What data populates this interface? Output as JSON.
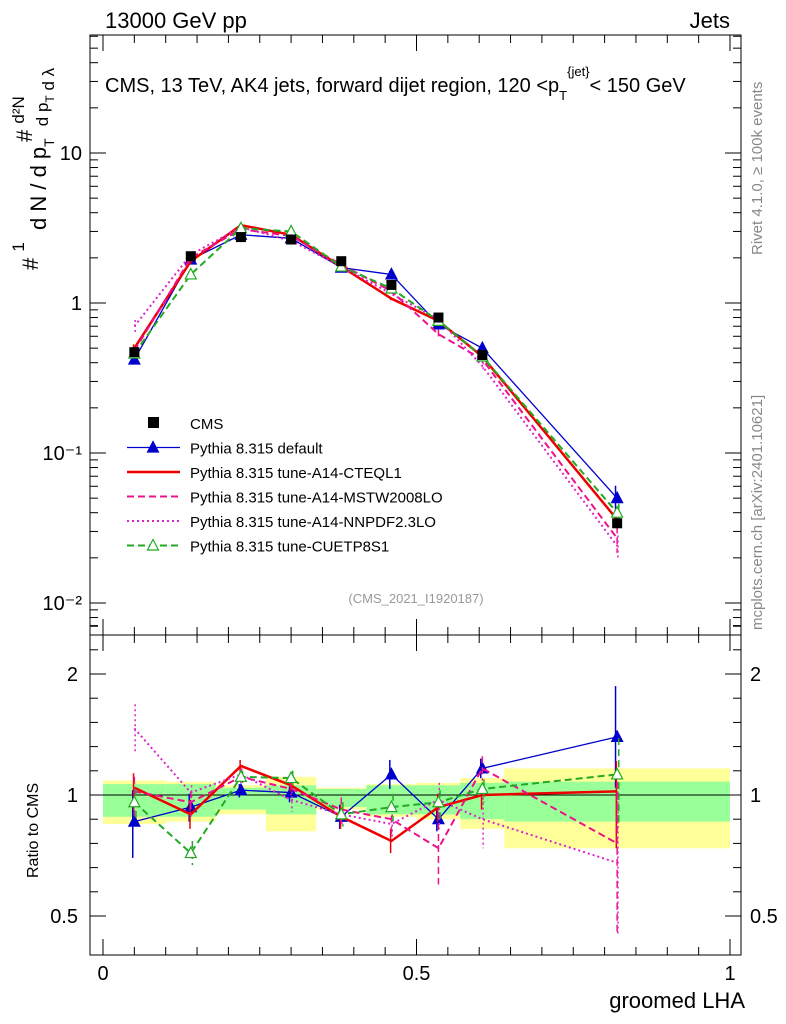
{
  "header": {
    "left": "13000 GeV pp",
    "right": "Jets",
    "side_rivet": "Rivet 4.1.0, ≥ 100k events",
    "side_mcplots": "mcplots.cern.ch [arXiv:2401.10621]"
  },
  "chart_data": {
    "type": "line",
    "title": "CMS, 13 TeV, AK4 jets, forward dijet region, 120 <p_T^{jet}< 150 GeV",
    "analysis_label": "(CMS_2021_I1920187)",
    "xlabel": "groomed LHA",
    "ylabel_main": "1/(dN/dp_T) d²N/(dp_T dλ)",
    "ylabel_ratio": "Ratio to CMS",
    "x_range": [
      0,
      1
    ],
    "y_range_main": [
      0.005,
      40
    ],
    "y_scale_main": "log",
    "y_range_ratio": [
      0.4,
      2.5
    ],
    "x_ticks": [
      "0",
      "0.5",
      "1"
    ],
    "y_ticks_main": [
      "10⁻²",
      "10⁻¹",
      "1",
      "10"
    ],
    "y_ticks_ratio": [
      "0.5",
      "1",
      "2"
    ],
    "x": [
      0.05,
      0.14,
      0.22,
      0.3,
      0.38,
      0.46,
      0.535,
      0.605,
      0.82
    ],
    "bin_edges": [
      0,
      0.1,
      0.18,
      0.26,
      0.34,
      0.42,
      0.5,
      0.57,
      0.64,
      1.0
    ],
    "data": {
      "name": "CMS",
      "values": [
        0.47,
        2.05,
        2.75,
        2.65,
        1.9,
        1.32,
        0.8,
        0.45,
        0.034
      ],
      "band_inner": [
        0.09,
        0.09,
        0.06,
        0.08,
        0.05,
        0.08,
        0.08,
        0.1,
        0.11
      ],
      "band_outer": [
        0.12,
        0.11,
        0.08,
        0.15,
        0.06,
        0.09,
        0.1,
        0.14,
        0.22
      ]
    },
    "series": [
      {
        "name": "Pythia 8.315 default",
        "color": "#0000cc",
        "style": "solid",
        "marker": "triangle-filled",
        "values": [
          0.42,
          1.95,
          2.85,
          2.7,
          1.72,
          1.55,
          0.72,
          0.5,
          0.05
        ],
        "ratio": [
          0.89,
          0.95,
          1.04,
          1.02,
          0.91,
          1.17,
          0.9,
          1.22,
          1.48
        ],
        "ratio_err": [
          0.15,
          0.06,
          0.05,
          0.05,
          0.05,
          0.12,
          0.05,
          0.08,
          0.42
        ]
      },
      {
        "name": "Pythia 8.315 tune-A14-CTEQL1",
        "color": "#ee0000",
        "style": "solid",
        "marker": "none",
        "values": [
          0.5,
          1.9,
          3.3,
          2.85,
          1.75,
          1.07,
          0.76,
          0.44,
          0.036
        ],
        "ratio": [
          1.06,
          0.92,
          1.24,
          1.08,
          0.91,
          0.81,
          0.95,
          1.0,
          1.03
        ],
        "ratio_err": [
          0.12,
          0.06,
          0.05,
          0.05,
          0.05,
          0.05,
          0.06,
          0.06,
          0.25
        ]
      },
      {
        "name": "Pythia 8.315 tune-A14-MSTW2008LO",
        "color": "#ee1188",
        "style": "dashed",
        "marker": "none",
        "values": [
          0.48,
          2.0,
          3.1,
          2.8,
          1.8,
          1.2,
          0.62,
          0.42,
          0.027
        ],
        "ratio": [
          1.03,
          0.97,
          1.15,
          1.05,
          0.94,
          0.9,
          0.78,
          1.22,
          0.8
        ],
        "ratio_err": [
          0.12,
          0.06,
          0.05,
          0.05,
          0.05,
          0.06,
          0.15,
          0.1,
          0.4
        ]
      },
      {
        "name": "Pythia 8.315 tune-A14-NNPDF2.3LO",
        "color": "#dd22cc",
        "style": "dotted",
        "marker": "none",
        "values": [
          0.7,
          2.1,
          3.2,
          2.6,
          1.75,
          1.15,
          0.78,
          0.38,
          0.024
        ],
        "ratio": [
          1.55,
          1.02,
          1.17,
          0.98,
          0.92,
          0.88,
          0.98,
          0.9,
          0.72
        ],
        "ratio_err": [
          0.2,
          0.06,
          0.05,
          0.05,
          0.05,
          0.06,
          0.12,
          0.12,
          0.35
        ]
      },
      {
        "name": "Pythia 8.315 tune-CUETP8S1",
        "color": "#22aa22",
        "style": "dashed",
        "marker": "triangle-open",
        "values": [
          0.46,
          1.55,
          3.15,
          3.0,
          1.75,
          1.25,
          0.76,
          0.44,
          0.04
        ],
        "ratio": [
          0.97,
          0.76,
          1.15,
          1.14,
          0.92,
          0.95,
          0.97,
          1.05,
          1.17
        ],
        "ratio_err": [
          0.08,
          0.05,
          0.05,
          0.06,
          0.05,
          0.06,
          0.07,
          0.08,
          0.3
        ]
      }
    ],
    "legend_position": "center-left"
  }
}
